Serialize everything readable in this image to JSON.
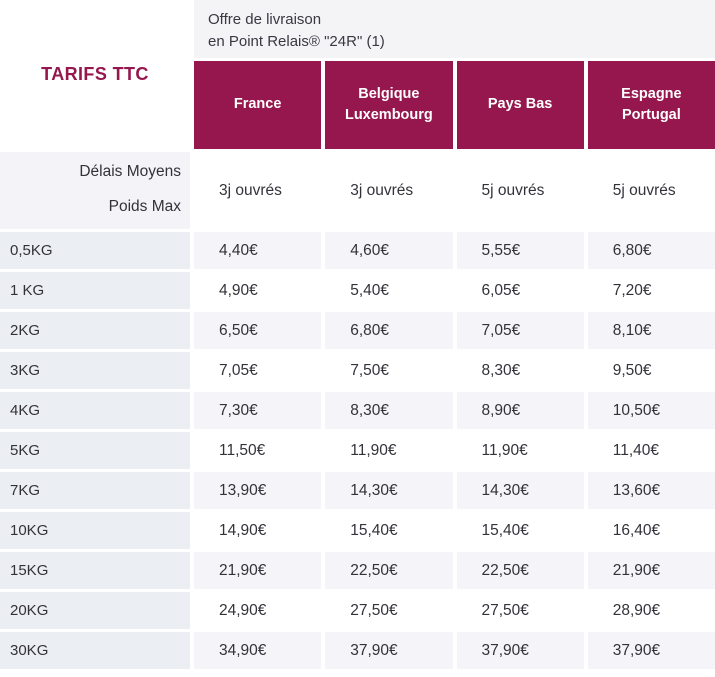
{
  "colors": {
    "brand_maroon": "#96174e",
    "banner_bg": "#f4f3f6",
    "label_column_bg": "#ebeef2",
    "stripe_row_bg": "#f5f4f8",
    "text_dark": "#33323a"
  },
  "banner": {
    "line1": "Offre de livraison",
    "line2": "en Point Relais® \"24R\" (1)"
  },
  "chart_data": {
    "type": "table",
    "corner_title": "TARIFS TTC",
    "column_headers": [
      "France",
      "Belgique Luxembourg",
      "Pays Bas",
      "Espagne Portugal"
    ],
    "meta_row": {
      "label_line1": "Délais Moyens",
      "label_line2": "Poids Max",
      "values": [
        "3j ouvrés",
        "3j ouvrés",
        "5j ouvrés",
        "5j ouvrés"
      ]
    },
    "rows": [
      {
        "label": "0,5KG",
        "prices": [
          "4,40€",
          "4,60€",
          "5,55€",
          "6,80€"
        ]
      },
      {
        "label": "1 KG",
        "prices": [
          "4,90€",
          "5,40€",
          "6,05€",
          "7,20€"
        ]
      },
      {
        "label": "2KG",
        "prices": [
          "6,50€",
          "6,80€",
          "7,05€",
          "8,10€"
        ]
      },
      {
        "label": "3KG",
        "prices": [
          "7,05€",
          "7,50€",
          "8,30€",
          "9,50€"
        ]
      },
      {
        "label": "4KG",
        "prices": [
          "7,30€",
          "8,30€",
          "8,90€",
          "10,50€"
        ]
      },
      {
        "label": "5KG",
        "prices": [
          "11,50€",
          "11,90€",
          "11,90€",
          "11,40€"
        ]
      },
      {
        "label": "7KG",
        "prices": [
          "13,90€",
          "14,30€",
          "14,30€",
          "13,60€"
        ]
      },
      {
        "label": "10KG",
        "prices": [
          "14,90€",
          "15,40€",
          "15,40€",
          "16,40€"
        ]
      },
      {
        "label": "15KG",
        "prices": [
          "21,90€",
          "22,50€",
          "22,50€",
          "21,90€"
        ]
      },
      {
        "label": "20KG",
        "prices": [
          "24,90€",
          "27,50€",
          "27,50€",
          "28,90€"
        ]
      },
      {
        "label": "30KG",
        "prices": [
          "34,90€",
          "37,90€",
          "37,90€",
          "37,90€"
        ]
      }
    ]
  }
}
